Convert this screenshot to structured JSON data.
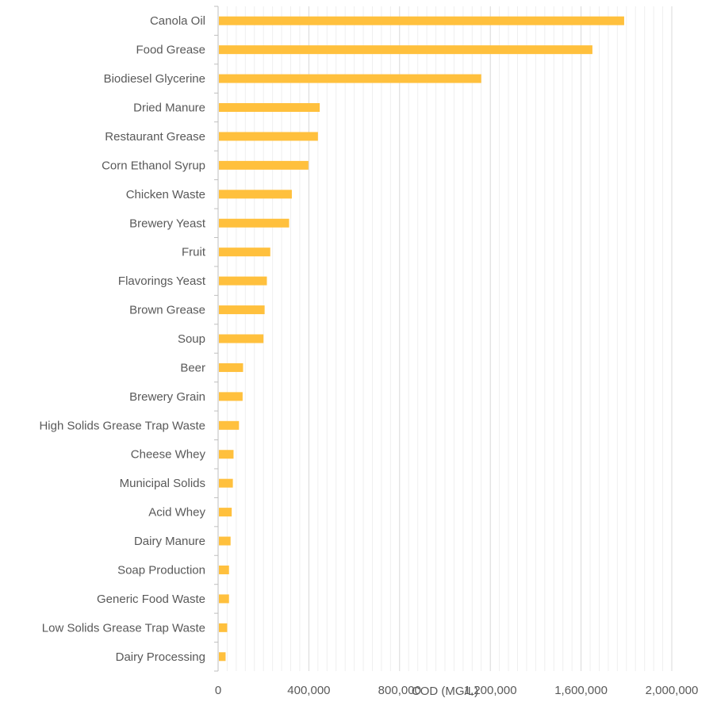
{
  "chart_data": {
    "type": "bar",
    "orientation": "horizontal",
    "categories": [
      "Canola Oil",
      "Food Grease",
      "Biodiesel Glycerine",
      "Dried Manure",
      "Restaurant Grease",
      "Corn Ethanol Syrup",
      "Chicken Waste",
      "Brewery Yeast",
      "Fruit",
      "Flavorings Yeast",
      "Brown Grease",
      "Soup",
      "Beer ",
      "Brewery Grain",
      "High Solids Grease Trap Waste",
      "Cheese Whey",
      "Municipal Solids",
      "Acid Whey",
      "Dairy Manure",
      "Soap Production",
      "Generic Food Waste",
      "Low Solids Grease Trap Waste",
      "Dairy Processing"
    ],
    "values": [
      1790000,
      1650000,
      1160000,
      448000,
      440000,
      398000,
      325000,
      313000,
      230000,
      215000,
      205000,
      200000,
      110000,
      108000,
      92000,
      68000,
      65000,
      60000,
      55000,
      48000,
      48000,
      40000,
      33000
    ],
    "xlabel": "COD (MG/L)",
    "ylabel": "",
    "title": "",
    "xlim": [
      0,
      2000000
    ],
    "xticks": [
      0,
      400000,
      800000,
      1200000,
      1600000,
      2000000
    ],
    "xtick_labels": [
      "0",
      "400,000",
      "800,000",
      "1,200,000",
      "1,600,000",
      "2,000,000"
    ],
    "minor_step": 40000,
    "grid": true,
    "legend": "none",
    "colors": {
      "bar": "#ffc03d",
      "major_grid": "#d9d9d9",
      "minor_grid": "#efefef",
      "axis": "#bfbfbf",
      "text": "#595959"
    }
  }
}
